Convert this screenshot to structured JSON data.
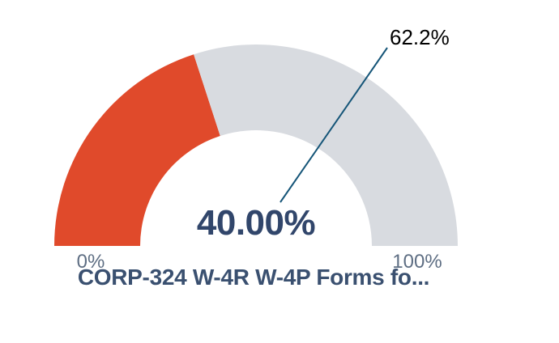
{
  "chart_data": {
    "type": "gauge",
    "title": "CORP-324 W-4R W-4P Forms fo...",
    "value": 40,
    "value_label": "40.00%",
    "min": 0,
    "max": 100,
    "min_label": "0%",
    "max_label": "100%",
    "callout_value": 62.2,
    "callout_label": "62.2%",
    "start_angle_deg": 180,
    "end_angle_deg": 0,
    "legend_position": "none",
    "grid": false,
    "colors": {
      "fill": "#E04A2B",
      "track": "#D8DBE0",
      "value_text": "#31466B",
      "title_text": "#3A5070",
      "axis_text": "#5E6E83",
      "callout_text": "#000000",
      "callout_line": "#155578",
      "background": "#FFFFFF"
    }
  }
}
